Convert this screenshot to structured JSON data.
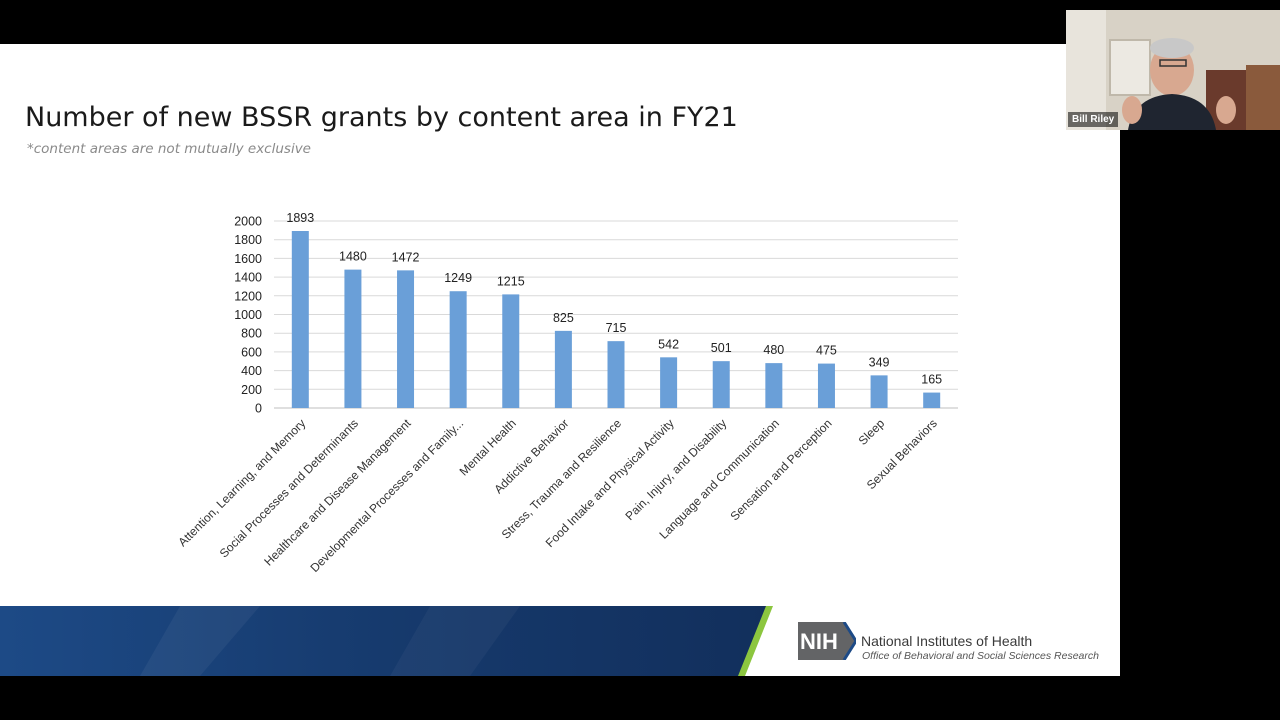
{
  "slide": {
    "title": "Number of new BSSR grants by content area in FY21",
    "subtitle": "*content areas are not mutually exclusive"
  },
  "chart_data": {
    "type": "bar",
    "categories": [
      "Attention, Learning, and Memory",
      "Social Processes and Determinants",
      "Healthcare and Disease Management",
      "Developmental Processes and Family...",
      "Mental Health",
      "Addictive Behavior",
      "Stress, Trauma and Resilience",
      "Food Intake and Physical Activity",
      "Pain, Injury, and Disability",
      "Language and Communication",
      "Sensation and Perception",
      "Sleep",
      "Sexual Behaviors"
    ],
    "values": [
      1893,
      1480,
      1472,
      1249,
      1215,
      825,
      715,
      542,
      501,
      480,
      475,
      349,
      165
    ],
    "ylim": [
      0,
      2000
    ],
    "yticks": [
      0,
      200,
      400,
      600,
      800,
      1000,
      1200,
      1400,
      1600,
      1800,
      2000
    ],
    "title": "",
    "xlabel": "",
    "ylabel": "",
    "grid": true,
    "bar_color": "#6a9fd8"
  },
  "footer": {
    "org_name": "National Institutes of Health",
    "office": "Office of Behavioral and Social Sciences Research",
    "logo_text": "NIH"
  },
  "webcam": {
    "participant_name": "Bill Riley"
  },
  "colors": {
    "bar": "#6a9fd8",
    "grid": "#d9d9d9",
    "footer_blue": "#1a3e73",
    "footer_green": "#8cc63f",
    "nih_gray": "#636466"
  }
}
